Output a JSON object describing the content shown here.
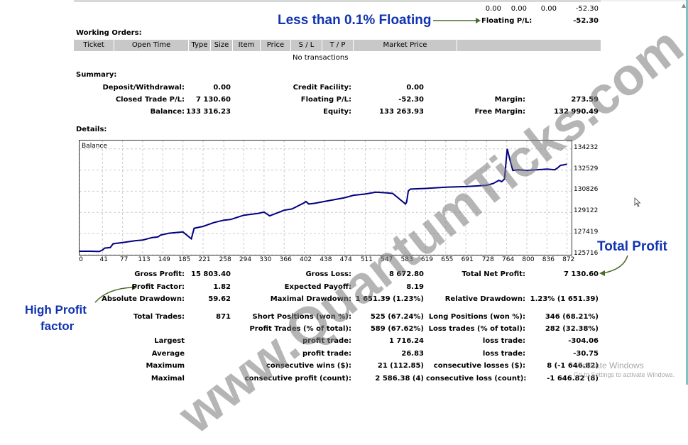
{
  "top": {
    "row_values": [
      "0.00",
      "0.00",
      "0.00",
      "-52.30"
    ],
    "floating_label": "Floating P/L:",
    "floating_value": "-52.30"
  },
  "annotations": {
    "floating": "Less than 0.1% Floating",
    "total_profit": "Total Profit",
    "profit_factor_line1": "High Profit",
    "profit_factor_line2": "factor",
    "accent_color": "#1033b0",
    "arrow_color": "#4a6a2a"
  },
  "working_orders": {
    "title": "Working Orders:",
    "columns": [
      "Ticket",
      "Open Time",
      "Type",
      "Size",
      "Item",
      "Price",
      "S / L",
      "T / P",
      "Market Price",
      ""
    ],
    "empty_text": "No transactions"
  },
  "summary": {
    "title": "Summary:",
    "deposit_label": "Deposit/Withdrawal:",
    "deposit_value": "0.00",
    "credit_label": "Credit Facility:",
    "credit_value": "0.00",
    "closed_label": "Closed Trade P/L:",
    "closed_value": "7 130.60",
    "floating_label": "Floating P/L:",
    "floating_value": "-52.30",
    "margin_label": "Margin:",
    "margin_value": "273.59",
    "balance_label": "Balance:",
    "balance_value": "133 316.23",
    "equity_label": "Equity:",
    "equity_value": "133 263.93",
    "free_margin_label": "Free Margin:",
    "free_margin_value": "132 990.49"
  },
  "details": {
    "title": "Details:"
  },
  "chart_data": {
    "type": "line",
    "title": "Balance",
    "xlabel": "",
    "ylabel": "",
    "x_ticks": [
      0,
      41,
      77,
      113,
      149,
      185,
      221,
      258,
      294,
      330,
      366,
      402,
      438,
      474,
      511,
      547,
      583,
      619,
      655,
      691,
      728,
      764,
      800,
      836,
      872
    ],
    "y_ticks": [
      125716,
      127419,
      129122,
      130826,
      132529,
      134232
    ],
    "ylim": [
      125716,
      134900
    ],
    "grid": true,
    "series": [
      {
        "name": "Balance",
        "color": "#000080",
        "x": [
          0,
          20,
          35,
          41,
          45,
          55,
          60,
          77,
          100,
          113,
          130,
          140,
          145,
          160,
          185,
          200,
          205,
          221,
          240,
          258,
          270,
          294,
          320,
          330,
          340,
          366,
          380,
          402,
          405,
          410,
          420,
          438,
          450,
          474,
          490,
          511,
          530,
          547,
          560,
          583,
          585,
          588,
          592,
          619,
          655,
          691,
          728,
          740,
          750,
          755,
          760,
          765,
          770,
          775,
          785,
          800,
          836,
          850,
          855,
          860,
          872
        ],
        "values": [
          126000,
          126000,
          125980,
          126100,
          126250,
          126300,
          126600,
          126700,
          126850,
          126900,
          127100,
          127150,
          127300,
          127450,
          127550,
          127000,
          127850,
          128000,
          128300,
          128500,
          128550,
          128900,
          129050,
          129150,
          128850,
          129300,
          129400,
          129900,
          130000,
          129800,
          129850,
          130000,
          130100,
          130300,
          130500,
          130600,
          130750,
          130700,
          130650,
          129800,
          129950,
          130850,
          131000,
          131050,
          131150,
          131200,
          131300,
          131450,
          131700,
          131600,
          131800,
          134230,
          133300,
          132500,
          132550,
          132500,
          132600,
          132550,
          132700,
          132900,
          133000
        ]
      }
    ]
  },
  "stats": {
    "gross_profit_label": "Gross Profit:",
    "gross_profit_value": "15 803.40",
    "gross_loss_label": "Gross Loss:",
    "gross_loss_value": "8 672.80",
    "total_net_label": "Total Net Profit:",
    "total_net_value": "7 130.60",
    "profit_factor_label": "Profit Factor:",
    "profit_factor_value": "1.82",
    "expected_payoff_label": "Expected Payoff:",
    "expected_payoff_value": "8.19",
    "abs_dd_label": "Absolute Drawdown:",
    "abs_dd_value": "59.62",
    "max_dd_label": "Maximal Drawdown:",
    "max_dd_value": "1 651.39 (1.23%)",
    "rel_dd_label": "Relative Drawdown:",
    "rel_dd_value": "1.23% (1 651.39)",
    "total_trades_label": "Total Trades:",
    "total_trades_value": "871",
    "short_label": "Short Positions (won %):",
    "short_value": "525 (67.24%)",
    "long_label": "Long Positions (won %):",
    "long_value": "346 (68.21%)",
    "profit_trades_label": "Profit Trades (% of total):",
    "profit_trades_value": "589 (67.62%)",
    "loss_trades_label": "Loss trades (% of total):",
    "loss_trades_value": "282 (32.38%)",
    "rows": [
      {
        "prefix": "Largest",
        "mid_label": "profit trade:",
        "mid_value": "1 716.24",
        "right_label": "loss trade:",
        "right_value": "-304.06"
      },
      {
        "prefix": "Average",
        "mid_label": "profit trade:",
        "mid_value": "26.83",
        "right_label": "loss trade:",
        "right_value": "-30.75"
      },
      {
        "prefix": "Maximum",
        "mid_label": "consecutive wins ($):",
        "mid_value": "21 (112.85)",
        "right_label": "consecutive losses ($):",
        "right_value": "8 (-1 646.82)"
      },
      {
        "prefix": "Maximal",
        "mid_label": "consecutive profit (count):",
        "mid_value": "2 586.38 (4)",
        "right_label": "consecutive loss (count):",
        "right_value": "-1 646.82 (8)"
      }
    ]
  },
  "watermark": "www.QuantumTicks.com",
  "activation": {
    "line1": "Activate Windows",
    "line2": "Go to Settings to activate Windows."
  }
}
